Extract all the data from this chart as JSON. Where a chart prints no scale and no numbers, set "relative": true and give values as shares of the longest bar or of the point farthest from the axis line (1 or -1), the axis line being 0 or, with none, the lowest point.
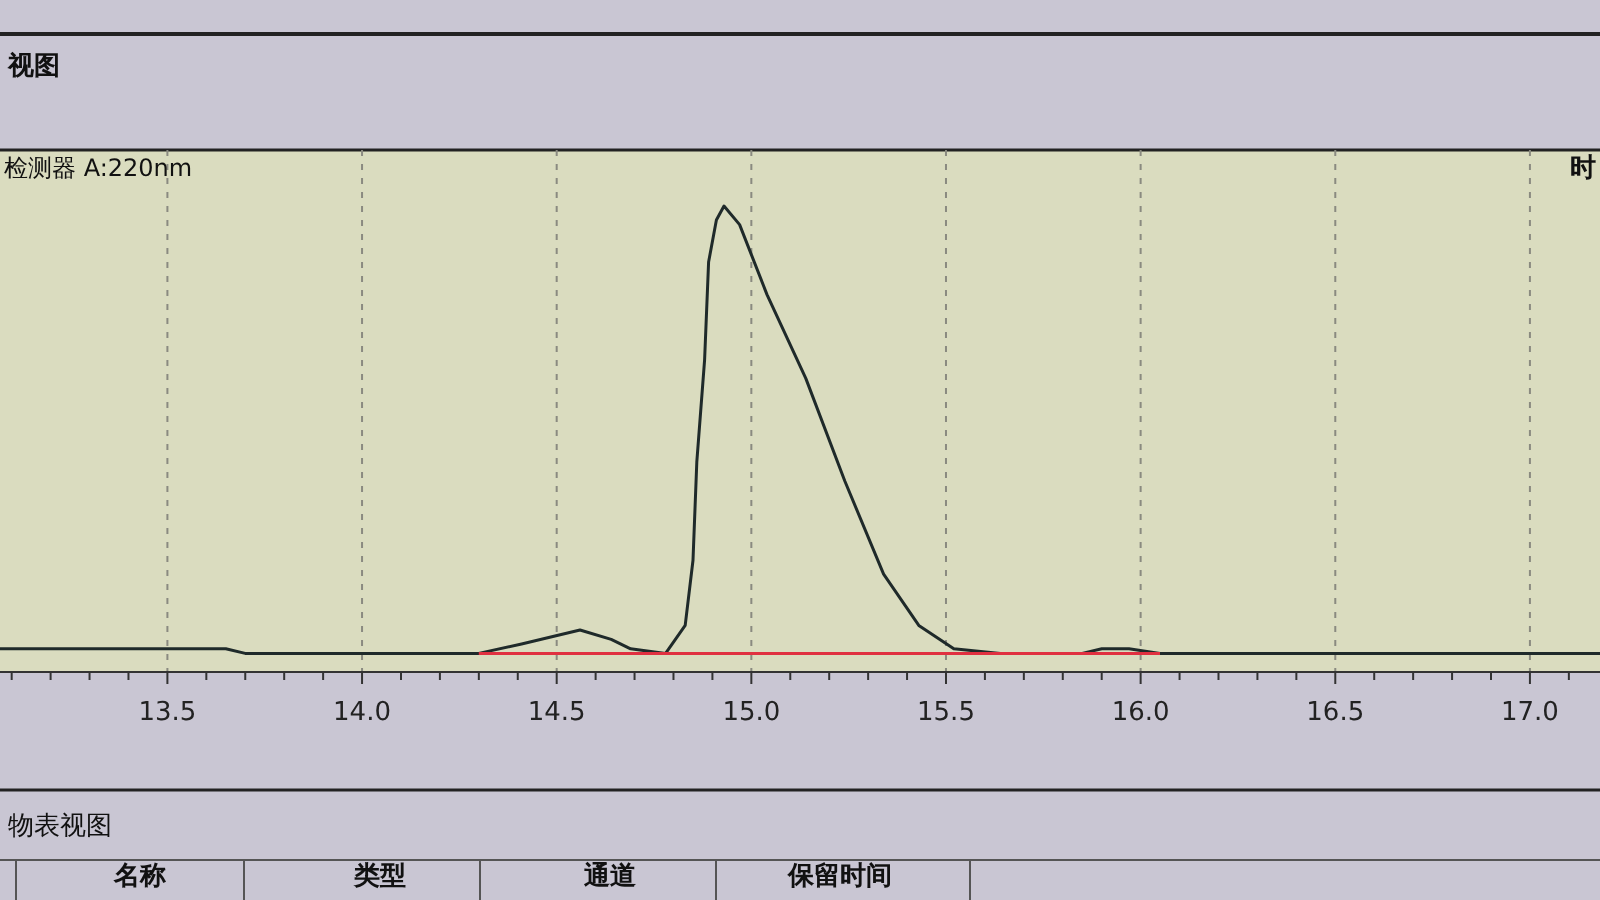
{
  "chart_data": {
    "type": "line",
    "title": "视图",
    "subtitle": "检测器 A:220nm",
    "relative": true,
    "grid": "x",
    "annotations": [
      "时",
      "物表视图",
      "名称",
      "类型",
      "通道",
      "保留时间"
    ],
    "xlim": [
      13.07,
      17.18
    ],
    "xticks": [
      {
        "value": 13.1,
        "label": null
      },
      {
        "value": 13.2,
        "label": null
      },
      {
        "value": 13.3,
        "label": null
      },
      {
        "value": 13.4,
        "label": null
      },
      {
        "value": 13.5,
        "label": "13.5"
      },
      {
        "value": 13.6,
        "label": null
      },
      {
        "value": 13.7,
        "label": null
      },
      {
        "value": 13.8,
        "label": null
      },
      {
        "value": 13.9,
        "label": null
      },
      {
        "value": 14.0,
        "label": "14.0"
      },
      {
        "value": 14.1,
        "label": null
      },
      {
        "value": 14.2,
        "label": null
      },
      {
        "value": 14.3,
        "label": null
      },
      {
        "value": 14.4,
        "label": null
      },
      {
        "value": 14.5,
        "label": "14.5"
      },
      {
        "value": 14.6,
        "label": null
      },
      {
        "value": 14.7,
        "label": null
      },
      {
        "value": 14.8,
        "label": null
      },
      {
        "value": 14.9,
        "label": null
      },
      {
        "value": 15.0,
        "label": "15.0"
      },
      {
        "value": 15.1,
        "label": null
      },
      {
        "value": 15.2,
        "label": null
      },
      {
        "value": 15.3,
        "label": null
      },
      {
        "value": 15.4,
        "label": null
      },
      {
        "value": 15.5,
        "label": "15.5"
      },
      {
        "value": 15.6,
        "label": null
      },
      {
        "value": 15.7,
        "label": null
      },
      {
        "value": 15.8,
        "label": null
      },
      {
        "value": 15.9,
        "label": null
      },
      {
        "value": 16.0,
        "label": "16.0"
      },
      {
        "value": 16.1,
        "label": null
      },
      {
        "value": 16.2,
        "label": null
      },
      {
        "value": 16.3,
        "label": null
      },
      {
        "value": 16.4,
        "label": null
      },
      {
        "value": 16.5,
        "label": "16.5"
      },
      {
        "value": 16.6,
        "label": null
      },
      {
        "value": 16.7,
        "label": null
      },
      {
        "value": 16.8,
        "label": null
      },
      {
        "value": 16.9,
        "label": null
      },
      {
        "value": 17.0,
        "label": "17.0"
      },
      {
        "value": 17.1,
        "label": null
      }
    ],
    "series": [
      {
        "color": "#1f2a2a",
        "x": [
          13.07,
          13.65,
          13.7,
          14.3,
          14.41,
          14.56,
          14.64,
          14.69,
          14.78,
          14.83,
          14.85,
          14.86,
          14.88,
          14.89,
          14.91,
          14.93,
          14.97,
          15.04,
          15.14,
          15.24,
          15.34,
          15.43,
          15.52,
          15.64,
          15.85,
          15.9,
          15.97,
          16.05,
          17.18
        ],
        "values": [
          0.05,
          0.05,
          0.04,
          0.04,
          0.06,
          0.09,
          0.07,
          0.05,
          0.04,
          0.1,
          0.24,
          0.45,
          0.67,
          0.88,
          0.97,
          1.0,
          0.96,
          0.81,
          0.63,
          0.41,
          0.21,
          0.1,
          0.05,
          0.04,
          0.04,
          0.05,
          0.05,
          0.04,
          0.04
        ]
      },
      {
        "color": "#e03040",
        "x": [
          14.3,
          16.05
        ],
        "values": [
          0.04,
          0.04
        ]
      }
    ]
  }
}
